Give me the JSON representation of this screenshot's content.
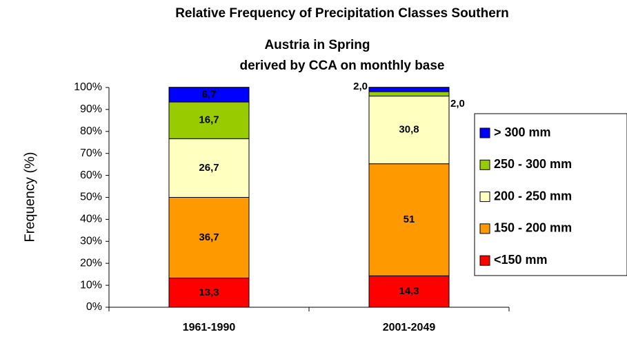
{
  "chart_data": {
    "type": "stacked_bar",
    "title": [
      "Relative Frequency of Precipitation Classes  Southern",
      "Austria in Spring"
    ],
    "subtitle": "derived by CCA on monthly base",
    "y_label": "Frequency (%)",
    "categories": [
      "1961-1990",
      "2001-2049"
    ],
    "series": [
      {
        "name": "<150 mm",
        "color": "#ff0000",
        "values": [
          13.3,
          14.3
        ],
        "value_labels": [
          "13,3",
          "14,3"
        ]
      },
      {
        "name": "150 - 200 mm",
        "color": "#ff9900",
        "values": [
          36.7,
          51
        ],
        "value_labels": [
          "36,7",
          "51"
        ]
      },
      {
        "name": "200 - 250 mm",
        "color": "#ffffc0",
        "values": [
          26.7,
          30.8
        ],
        "value_labels": [
          "26,7",
          "30,8"
        ]
      },
      {
        "name": "250 - 300 mm",
        "color": "#99cc00",
        "values": [
          16.7,
          2.0
        ],
        "value_labels": [
          "16,7",
          "2,0"
        ]
      },
      {
        "name": "> 300 mm",
        "color": "#0000ff",
        "values": [
          6.7,
          2.0
        ],
        "value_labels": [
          "6,7",
          "2,0"
        ]
      }
    ],
    "ylim": [
      0,
      100
    ],
    "yticks": [
      {
        "value": 0,
        "label": "0%"
      },
      {
        "value": 10,
        "label": "10%"
      },
      {
        "value": 20,
        "label": "20%"
      },
      {
        "value": 30,
        "label": "30%"
      },
      {
        "value": 40,
        "label": "40%"
      },
      {
        "value": 50,
        "label": "50%"
      },
      {
        "value": 60,
        "label": "60%"
      },
      {
        "value": 70,
        "label": "70%"
      },
      {
        "value": 80,
        "label": "80%"
      },
      {
        "value": 90,
        "label": "90%"
      },
      {
        "value": 100,
        "label": "100%"
      }
    ],
    "legend": "right"
  }
}
